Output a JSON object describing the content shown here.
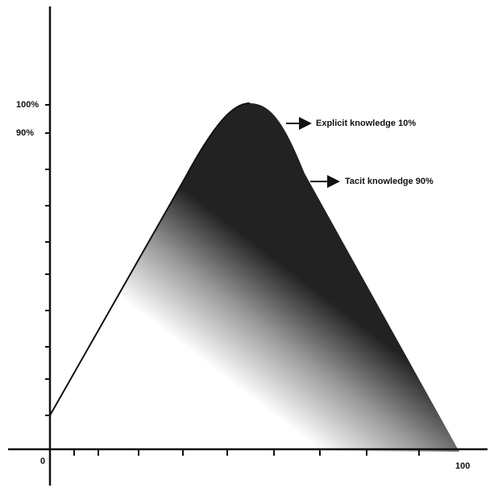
{
  "y_axis": {
    "labels": [
      "100%",
      "90%"
    ]
  },
  "x_axis": {
    "origin": "0",
    "end": "100"
  },
  "annotations": [
    "Explicit knowledge 10%",
    "Tacit knowledge 90%"
  ]
}
